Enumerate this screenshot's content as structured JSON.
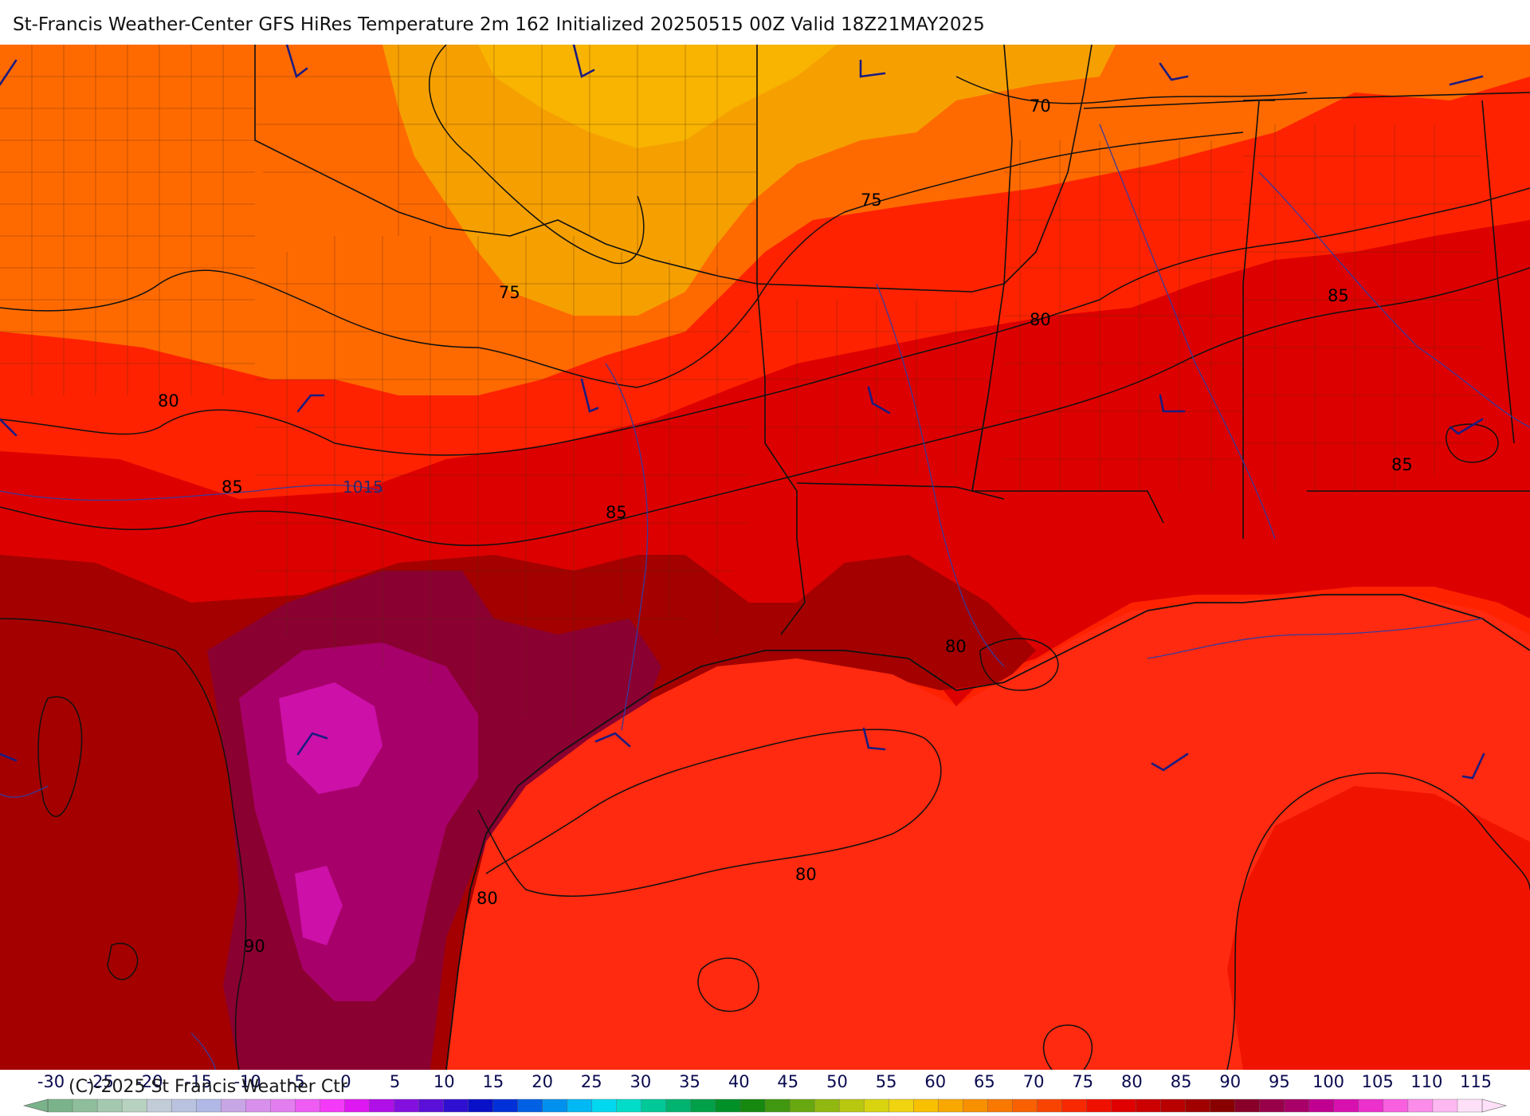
{
  "title": "St-Francis Weather-Center GFS HiRes Temperature 2m  162 Initialized 20250515 00Z Valid 18Z21MAY2025",
  "copyright": "(C)-2025 St Francis Weather Ctr",
  "colors": {
    "t70": "#f5a000",
    "t75": "#ff6a00",
    "t80": "#ff2200",
    "t85": "#dd0000",
    "t90": "#a40000",
    "t95": "#8a0030",
    "t100": "#a8006a",
    "t105": "#cc10a8",
    "gulf": "#ff2a10",
    "contour": "#111111",
    "isobar": "#3a3a9a",
    "barb": "#1c1c80"
  },
  "map": {
    "contour_labels": [
      {
        "id": "c70",
        "text": "70"
      },
      {
        "id": "c75a",
        "text": "75"
      },
      {
        "id": "c75b",
        "text": "75"
      },
      {
        "id": "c80a",
        "text": "80"
      },
      {
        "id": "c80b",
        "text": "80"
      },
      {
        "id": "c80c",
        "text": "80"
      },
      {
        "id": "c80d",
        "text": "80"
      },
      {
        "id": "c80e",
        "text": "80"
      },
      {
        "id": "c85a",
        "text": "85"
      },
      {
        "id": "c85b",
        "text": "85"
      },
      {
        "id": "c85c",
        "text": "85"
      },
      {
        "id": "c85d",
        "text": "85"
      },
      {
        "id": "c90",
        "text": "90"
      }
    ],
    "isobar_label": "1015"
  },
  "colorbar": {
    "ticks": [
      "-30",
      "-25",
      "-20",
      "-15",
      "-10",
      "-5",
      "0",
      "5",
      "10",
      "15",
      "20",
      "25",
      "30",
      "35",
      "40",
      "45",
      "50",
      "55",
      "60",
      "65",
      "70",
      "75",
      "80",
      "85",
      "90",
      "95",
      "100",
      "105",
      "110",
      "115"
    ],
    "colors": [
      "#7ab38a",
      "#8fbe9c",
      "#a4c8b0",
      "#b8d2c0",
      "#c2ccd8",
      "#b9c2de",
      "#b0b8e6",
      "#c8a6e6",
      "#d890ec",
      "#e27ef0",
      "#ee5cf4",
      "#f43af8",
      "#dd18f0",
      "#b010e8",
      "#8410e0",
      "#5a10d8",
      "#3010d0",
      "#0810c8",
      "#0030d8",
      "#0060e4",
      "#0090ee",
      "#00b8f4",
      "#00d8f0",
      "#00dcc8",
      "#00c898",
      "#00b470",
      "#00a048",
      "#009028",
      "#168810",
      "#409810",
      "#68a810",
      "#90b810",
      "#b8c810",
      "#d8d410",
      "#f0d410",
      "#f8c000",
      "#f8a800",
      "#f89000",
      "#f87800",
      "#f86000",
      "#f84400",
      "#f82800",
      "#f01000",
      "#e00000",
      "#cc0000",
      "#b80000",
      "#a00000",
      "#880000",
      "#88002a",
      "#98004a",
      "#a80068",
      "#c00090",
      "#d810b0",
      "#ec30cc",
      "#f860e0",
      "#fb8cea",
      "#fdb8f2",
      "#fee0f8"
    ]
  }
}
